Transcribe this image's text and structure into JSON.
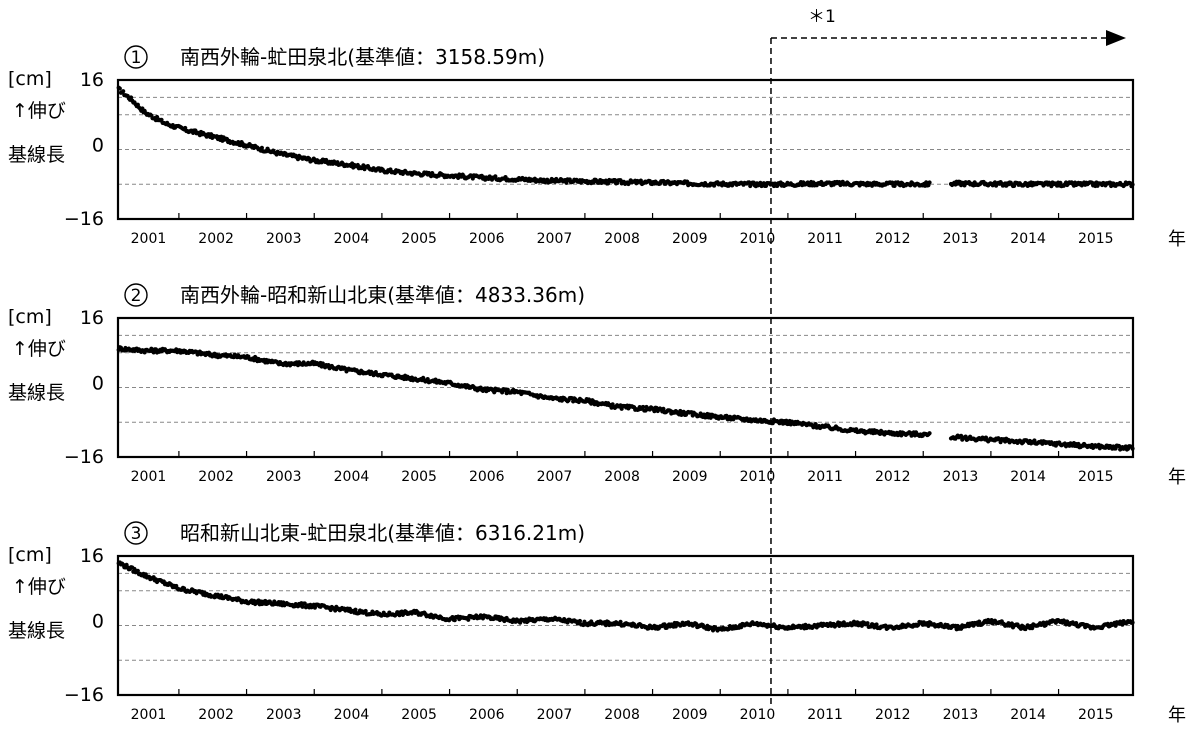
{
  "annotation": {
    "label": "＊1",
    "marker_year": 2010.25
  },
  "chart_data": [
    {
      "type": "scatter",
      "number": "1",
      "title": "南西外輪-虻田泉北(基準値：3158.59m)",
      "ylabel_unit": "[cm]",
      "ylabel_lines": [
        "↑伸び",
        "基線長"
      ],
      "xlabel": "年",
      "ylim": [
        -16,
        16
      ],
      "yticks": [
        "16",
        "0",
        "−16"
      ],
      "xlim": [
        2000.6,
        2015.6
      ],
      "xticks": [
        "2001",
        "2002",
        "2003",
        "2004",
        "2005",
        "2006",
        "2007",
        "2008",
        "2009",
        "2010",
        "2011",
        "2012",
        "2013",
        "2014",
        "2015"
      ],
      "grid": true,
      "gaps": [
        [
          2012.6,
          2012.9
        ]
      ],
      "series": [
        {
          "x": [
            2000.6,
            2000.8,
            2001.0,
            2001.3,
            2001.6,
            2002.0,
            2002.5,
            2003.0,
            2003.5,
            2004.0,
            2004.5,
            2005.0,
            2005.5,
            2006.0,
            2006.5,
            2007.0,
            2007.5,
            2008.0,
            2008.5,
            2009.0,
            2009.5,
            2010.0,
            2010.5,
            2011.0,
            2011.5,
            2012.0,
            2012.5,
            2013.0,
            2013.5,
            2014.0,
            2014.5,
            2015.0,
            2015.6
          ],
          "y": [
            14.0,
            11.5,
            8.5,
            6.0,
            4.5,
            3.0,
            1.0,
            -1.0,
            -2.5,
            -3.5,
            -4.8,
            -5.5,
            -6.0,
            -6.5,
            -6.8,
            -7.2,
            -7.3,
            -7.5,
            -7.6,
            -7.8,
            -7.9,
            -8.0,
            -8.0,
            -7.8,
            -7.9,
            -8.0,
            -8.0,
            -7.8,
            -7.9,
            -8.0,
            -8.0,
            -8.0,
            -8.0
          ]
        }
      ]
    },
    {
      "type": "scatter",
      "number": "2",
      "title": "南西外輪-昭和新山北東(基準値：4833.36m)",
      "ylabel_unit": "[cm]",
      "ylabel_lines": [
        "↑伸び",
        "基線長"
      ],
      "xlabel": "年",
      "ylim": [
        -16,
        16
      ],
      "yticks": [
        "16",
        "0",
        "−16"
      ],
      "xlim": [
        2000.6,
        2015.6
      ],
      "xticks": [
        "2001",
        "2002",
        "2003",
        "2004",
        "2005",
        "2006",
        "2007",
        "2008",
        "2009",
        "2010",
        "2011",
        "2012",
        "2013",
        "2014",
        "2015"
      ],
      "grid": true,
      "gaps": [
        [
          2012.6,
          2012.9
        ]
      ],
      "series": [
        {
          "x": [
            2000.6,
            2001.0,
            2001.5,
            2002.0,
            2002.5,
            2003.0,
            2003.5,
            2004.0,
            2004.5,
            2005.0,
            2005.5,
            2006.0,
            2006.5,
            2007.0,
            2007.5,
            2008.0,
            2008.5,
            2009.0,
            2009.5,
            2010.0,
            2010.5,
            2011.0,
            2011.5,
            2012.0,
            2012.5,
            2013.0,
            2013.5,
            2014.0,
            2014.5,
            2015.0,
            2015.6
          ],
          "y": [
            9.0,
            8.5,
            8.5,
            7.5,
            7.0,
            5.5,
            5.5,
            4.0,
            3.0,
            2.0,
            1.0,
            -0.5,
            -1.0,
            -2.5,
            -3.0,
            -4.5,
            -5.0,
            -6.0,
            -6.8,
            -7.5,
            -8.0,
            -9.0,
            -10.0,
            -10.5,
            -10.8,
            -11.5,
            -12.0,
            -12.5,
            -13.0,
            -13.5,
            -14.0
          ]
        }
      ]
    },
    {
      "type": "scatter",
      "number": "3",
      "title": "昭和新山北東-虻田泉北(基準値：6316.21m)",
      "ylabel_unit": "[cm]",
      "ylabel_lines": [
        "↑伸び",
        "基線長"
      ],
      "xlabel": "年",
      "ylim": [
        -16,
        16
      ],
      "yticks": [
        "16",
        "0",
        "−16"
      ],
      "xlim": [
        2000.6,
        2015.6
      ],
      "xticks": [
        "2001",
        "2002",
        "2003",
        "2004",
        "2005",
        "2006",
        "2007",
        "2008",
        "2009",
        "2010",
        "2011",
        "2012",
        "2013",
        "2014",
        "2015"
      ],
      "grid": true,
      "gaps": [],
      "series": [
        {
          "x": [
            2000.6,
            2001.0,
            2001.5,
            2002.0,
            2002.5,
            2003.0,
            2003.5,
            2004.0,
            2004.5,
            2005.0,
            2005.5,
            2006.0,
            2006.5,
            2007.0,
            2007.5,
            2008.0,
            2008.5,
            2009.0,
            2009.5,
            2010.0,
            2010.5,
            2011.0,
            2011.5,
            2012.0,
            2012.5,
            2013.0,
            2013.5,
            2014.0,
            2014.5,
            2015.0,
            2015.6
          ],
          "y": [
            14.5,
            11.5,
            8.5,
            7.0,
            5.5,
            5.0,
            4.5,
            3.5,
            2.5,
            3.0,
            1.5,
            2.0,
            1.0,
            1.5,
            0.5,
            0.5,
            -0.5,
            0.5,
            -1.0,
            0.5,
            -0.5,
            0.0,
            0.5,
            -0.5,
            0.5,
            -0.5,
            1.0,
            -0.5,
            1.0,
            -0.5,
            1.0
          ]
        }
      ]
    }
  ]
}
